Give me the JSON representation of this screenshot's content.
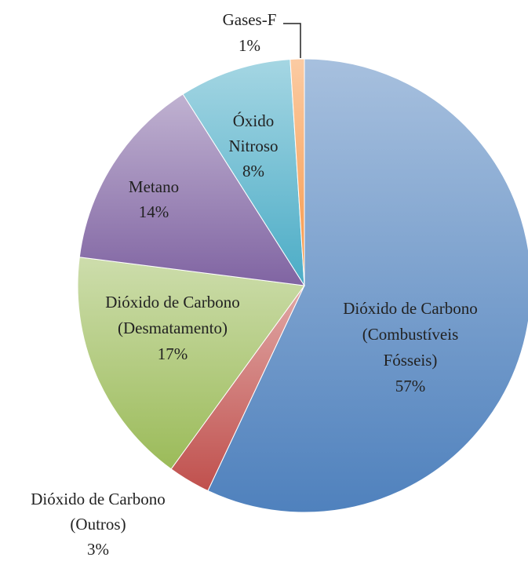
{
  "chart_data": {
    "type": "pie",
    "categories": [
      [
        "Dióxido de Carbono",
        "(Combustíveis",
        "Fósseis)"
      ],
      [
        "Dióxido de Carbono",
        "(Outros)"
      ],
      [
        "Dióxido de Carbono",
        "(Desmatamento)"
      ],
      [
        "Metano"
      ],
      [
        "Óxido",
        "Nitroso"
      ],
      [
        "Gases-F"
      ]
    ],
    "values": [
      57,
      3,
      17,
      14,
      8,
      1
    ],
    "value_labels": [
      "57%",
      "3%",
      "17%",
      "14%",
      "8%",
      "1%"
    ],
    "colors": [
      "#4f81bd",
      "#c0504d",
      "#9bbb59",
      "#8064a2",
      "#4bacc6",
      "#f79646"
    ]
  }
}
